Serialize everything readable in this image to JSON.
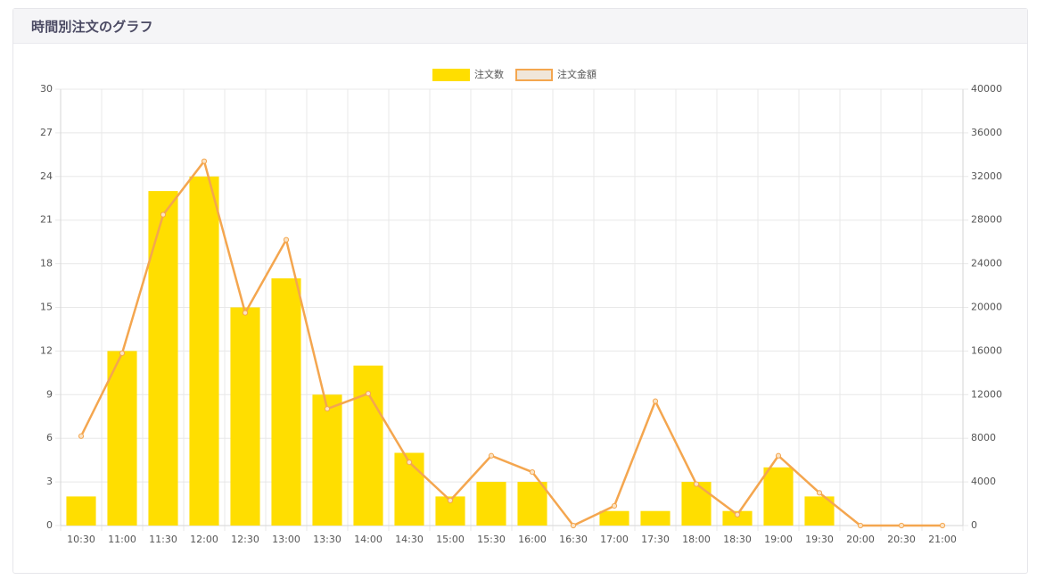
{
  "card": {
    "title": "時間別注文のグラフ"
  },
  "colors": {
    "bar": "#ffde00",
    "line": "#f4a64f",
    "grid": "#e8e8e8",
    "tick": "#555555"
  },
  "chart_data": {
    "type": "bar",
    "title": "",
    "categories": [
      "10:30",
      "11:00",
      "11:30",
      "12:00",
      "12:30",
      "13:00",
      "13:30",
      "14:00",
      "14:30",
      "15:00",
      "15:30",
      "16:00",
      "16:30",
      "17:00",
      "17:30",
      "18:00",
      "18:30",
      "19:00",
      "19:30",
      "20:00",
      "20:30",
      "21:00"
    ],
    "series": [
      {
        "name": "注文数",
        "type": "bar",
        "axis": "left",
        "values": [
          2,
          12,
          23,
          24,
          15,
          17,
          9,
          11,
          5,
          2,
          3,
          3,
          0,
          1,
          1,
          3,
          1,
          4,
          2,
          0,
          0,
          0
        ]
      },
      {
        "name": "注文金額",
        "type": "line",
        "axis": "right",
        "values": [
          8200,
          15800,
          28500,
          33400,
          19500,
          26200,
          10700,
          12100,
          5800,
          2300,
          6400,
          4900,
          0,
          1800,
          11400,
          3800,
          1000,
          6400,
          3000,
          0,
          0,
          0
        ]
      }
    ],
    "y_left": {
      "min": 0,
      "max": 30,
      "ticks": [
        0,
        3,
        6,
        9,
        12,
        15,
        18,
        21,
        24,
        27,
        30
      ]
    },
    "y_right": {
      "min": 0,
      "max": 40000,
      "ticks": [
        0,
        4000,
        8000,
        12000,
        16000,
        20000,
        24000,
        28000,
        32000,
        36000,
        40000
      ]
    },
    "legend": "top-center",
    "grid": true
  }
}
